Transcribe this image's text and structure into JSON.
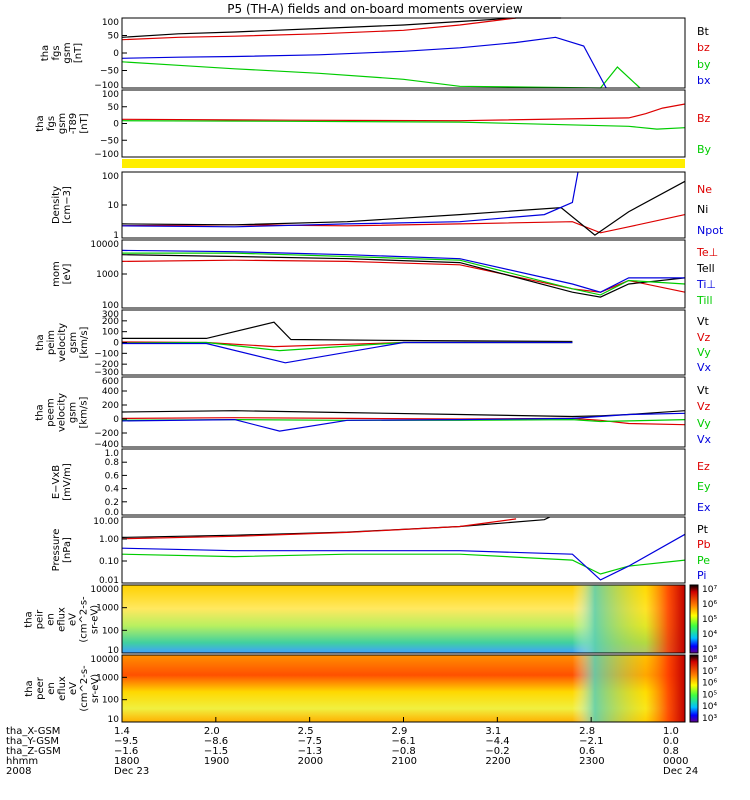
{
  "title": "P5 (TH-A) fields and on-board moments overview",
  "colors": {
    "black": "#000000",
    "red": "#dd0000",
    "green": "#00cc00",
    "blue": "#0000dd",
    "yellow": "#ffee00"
  },
  "chart_data": [
    {
      "type": "line",
      "panel": "fgs",
      "ylabel": [
        "tha",
        "fgs",
        "gsm",
        "[nT]"
      ],
      "yticks": [
        "100",
        "50",
        "0",
        "−50",
        "−100"
      ],
      "ylim": [
        -100,
        100
      ],
      "series": [
        {
          "name": "Bt",
          "color": "black",
          "x": [
            0,
            0.1,
            0.2,
            0.35,
            0.5,
            0.6,
            0.7,
            0.78
          ],
          "y": [
            45,
            55,
            60,
            70,
            80,
            90,
            100,
            110
          ]
        },
        {
          "name": "bz",
          "color": "red",
          "x": [
            0,
            0.1,
            0.2,
            0.35,
            0.5,
            0.6,
            0.7
          ],
          "y": [
            38,
            45,
            48,
            55,
            65,
            80,
            100
          ]
        },
        {
          "name": "by",
          "color": "green",
          "x": [
            0,
            0.1,
            0.2,
            0.35,
            0.5,
            0.6,
            0.85,
            0.88,
            0.92
          ],
          "y": [
            -25,
            -35,
            -45,
            -58,
            -75,
            -95,
            -100,
            -40,
            -100
          ]
        },
        {
          "name": "bx",
          "color": "blue",
          "x": [
            0,
            0.1,
            0.2,
            0.35,
            0.5,
            0.6,
            0.7,
            0.77,
            0.82,
            0.86
          ],
          "y": [
            -15,
            -12,
            -10,
            -5,
            5,
            15,
            30,
            45,
            20,
            -100
          ]
        }
      ]
    },
    {
      "type": "line",
      "panel": "fgs-t89",
      "ylabel": [
        "tha",
        "fgs",
        "gsm",
        "-T89",
        "[nT]"
      ],
      "yticks": [
        "100",
        "50",
        "0",
        "−50",
        "−100"
      ],
      "ylim": [
        -130,
        110
      ],
      "series": [
        {
          "name": "Bz",
          "color": "red",
          "x": [
            0,
            0.3,
            0.6,
            0.9,
            0.93,
            0.96,
            1
          ],
          "y": [
            5,
            2,
            0,
            10,
            25,
            45,
            60
          ]
        },
        {
          "name": "By",
          "color": "green",
          "x": [
            0,
            0.3,
            0.6,
            0.9,
            0.95,
            1
          ],
          "y": [
            0,
            -2,
            -5,
            -20,
            -30,
            -25
          ]
        }
      ]
    },
    {
      "type": "line",
      "panel": "density",
      "yscale": "log",
      "ylabel": [
        "Density",
        "[cm−3]"
      ],
      "yticks": [
        "100",
        "10",
        "1"
      ],
      "ylim": [
        0.3,
        200
      ],
      "series": [
        {
          "name": "Ne",
          "color": "red",
          "x": [
            0,
            0.2,
            0.4,
            0.6,
            0.8,
            0.85,
            0.9,
            1
          ],
          "y": [
            1,
            1.1,
            1.0,
            1.2,
            1.5,
            0.5,
            0.9,
            3
          ]
        },
        {
          "name": "Ni",
          "color": "black",
          "x": [
            0,
            0.2,
            0.4,
            0.6,
            0.78,
            0.84,
            0.9,
            1
          ],
          "y": [
            1.2,
            1.1,
            1.5,
            3,
            6,
            0.4,
            4,
            80
          ]
        },
        {
          "name": "Npot",
          "color": "blue",
          "x": [
            0,
            0.2,
            0.4,
            0.6,
            0.75,
            0.8,
            0.81
          ],
          "y": [
            1.0,
            0.9,
            1.2,
            1.5,
            3,
            10,
            200
          ]
        }
      ]
    },
    {
      "type": "line",
      "panel": "mom",
      "yscale": "log",
      "ylabel": [
        "mom",
        "[eV]"
      ],
      "yticks": [
        "10000",
        "1000",
        "100"
      ],
      "ylim": [
        40,
        12000
      ],
      "series": [
        {
          "name": "Te⊥",
          "color": "red",
          "x": [
            0,
            0.2,
            0.4,
            0.6,
            0.8,
            0.85,
            0.9,
            1
          ],
          "y": [
            2000,
            2200,
            2000,
            1500,
            200,
            150,
            400,
            150
          ]
        },
        {
          "name": "Tell",
          "color": "black",
          "x": [
            0,
            0.2,
            0.4,
            0.6,
            0.8,
            0.85,
            0.9,
            1
          ],
          "y": [
            3500,
            3000,
            2500,
            1800,
            150,
            100,
            300,
            500
          ]
        },
        {
          "name": "Ti⊥",
          "color": "blue",
          "x": [
            0,
            0.2,
            0.4,
            0.6,
            0.8,
            0.85,
            0.9,
            1
          ],
          "y": [
            5000,
            4500,
            3500,
            2500,
            300,
            150,
            500,
            500
          ]
        },
        {
          "name": "Till",
          "color": "green",
          "x": [
            0,
            0.2,
            0.4,
            0.6,
            0.8,
            0.85,
            0.9,
            1
          ],
          "y": [
            4000,
            4000,
            3000,
            2200,
            200,
            120,
            400,
            300
          ]
        }
      ]
    },
    {
      "type": "line",
      "panel": "peim",
      "ylabel": [
        "tha",
        "peim",
        "velocity",
        "gsm",
        "[km/s]"
      ],
      "yticks": [
        "300",
        "200",
        "100",
        "0",
        "−100",
        "−200",
        "−300"
      ],
      "ylim": [
        -320,
        320
      ],
      "series": [
        {
          "name": "Vt",
          "color": "black",
          "x": [
            0,
            0.15,
            0.27,
            0.3,
            0.5,
            0.8
          ],
          "y": [
            40,
            40,
            200,
            30,
            20,
            10
          ]
        },
        {
          "name": "Vz",
          "color": "red",
          "x": [
            0,
            0.15,
            0.27,
            0.5,
            0.8
          ],
          "y": [
            5,
            0,
            -40,
            0,
            0
          ]
        },
        {
          "name": "Vy",
          "color": "green",
          "x": [
            0,
            0.15,
            0.28,
            0.5,
            0.8
          ],
          "y": [
            -5,
            0,
            -80,
            0,
            0
          ]
        },
        {
          "name": "Vx",
          "color": "blue",
          "x": [
            0,
            0.15,
            0.29,
            0.5,
            0.8
          ],
          "y": [
            -10,
            -10,
            -200,
            0,
            0
          ]
        }
      ]
    },
    {
      "type": "line",
      "panel": "peem",
      "ylabel": [
        "tha",
        "peem",
        "velocity",
        "gsm",
        "[km/s]"
      ],
      "yticks": [
        "600",
        "400",
        "200",
        "0",
        "−200",
        "−400"
      ],
      "ylim": [
        -450,
        650
      ],
      "series": [
        {
          "name": "Vt",
          "color": "black",
          "x": [
            0,
            0.2,
            0.4,
            0.6,
            0.8,
            0.85,
            0.9,
            1
          ],
          "y": [
            100,
            120,
            90,
            60,
            30,
            40,
            60,
            120
          ]
        },
        {
          "name": "Vz",
          "color": "red",
          "x": [
            0,
            0.2,
            0.4,
            0.6,
            0.8,
            0.85,
            0.9,
            1
          ],
          "y": [
            0,
            10,
            0,
            -10,
            0,
            -30,
            -80,
            -100
          ]
        },
        {
          "name": "Vy",
          "color": "green",
          "x": [
            0,
            0.2,
            0.4,
            0.6,
            0.8,
            0.85,
            0.9,
            1
          ],
          "y": [
            -30,
            -20,
            -30,
            -30,
            -20,
            -50,
            -40,
            -20
          ]
        },
        {
          "name": "Vx",
          "color": "blue",
          "x": [
            0,
            0.2,
            0.28,
            0.4,
            0.6,
            0.8,
            0.9,
            1
          ],
          "y": [
            -40,
            -20,
            -200,
            -30,
            -20,
            0,
            60,
            80
          ]
        }
      ]
    },
    {
      "type": "line",
      "panel": "efield",
      "ylabel": [
        "E−VxB",
        "[mV/m]"
      ],
      "yticks": [
        "1.0",
        "0.8",
        "0.6",
        "0.4",
        "0.2",
        "0.0"
      ],
      "ylim": [
        0,
        1
      ],
      "series": [
        {
          "name": "Ez",
          "color": "red",
          "x": [],
          "y": []
        },
        {
          "name": "Ey",
          "color": "green",
          "x": [],
          "y": []
        },
        {
          "name": "Ex",
          "color": "blue",
          "x": [],
          "y": []
        }
      ]
    },
    {
      "type": "line",
      "panel": "pressure",
      "yscale": "log",
      "ylabel": [
        "Pressure",
        "[nPa]"
      ],
      "yticks": [
        "10.00",
        "1.00",
        "0.10",
        "0.01"
      ],
      "ylim": [
        0.007,
        15
      ],
      "series": [
        {
          "name": "Pt",
          "color": "black",
          "x": [
            0,
            0.2,
            0.4,
            0.6,
            0.75,
            0.76
          ],
          "y": [
            1.4,
            1.8,
            2.6,
            5,
            11,
            15
          ]
        },
        {
          "name": "Pb",
          "color": "red",
          "x": [
            0,
            0.2,
            0.4,
            0.6,
            0.7
          ],
          "y": [
            1.2,
            1.6,
            2.5,
            5,
            12
          ]
        },
        {
          "name": "Pe",
          "color": "green",
          "x": [
            0,
            0.2,
            0.4,
            0.6,
            0.8,
            0.85,
            0.9,
            1
          ],
          "y": [
            0.2,
            0.15,
            0.2,
            0.2,
            0.1,
            0.02,
            0.05,
            0.1
          ]
        },
        {
          "name": "Pi",
          "color": "blue",
          "x": [
            0,
            0.2,
            0.4,
            0.6,
            0.8,
            0.85,
            0.9,
            1
          ],
          "y": [
            0.4,
            0.3,
            0.3,
            0.3,
            0.2,
            0.01,
            0.05,
            2
          ]
        }
      ]
    },
    {
      "type": "heatmap",
      "panel": "peir",
      "ylabel": [
        "tha",
        "peir",
        "en",
        "eflux",
        "eV",
        "(cm^2-s-",
        "sr-eV)"
      ],
      "yticks": [
        "10000",
        "1000",
        "100",
        "10"
      ],
      "cbar": [
        "10⁷",
        "10⁶",
        "10⁵",
        "10⁴",
        "10³"
      ]
    },
    {
      "type": "heatmap",
      "panel": "peer",
      "ylabel": [
        "tha",
        "peer",
        "en",
        "eflux",
        "eV",
        "(cm^2-s-",
        "sr-eV)"
      ],
      "yticks": [
        "10000",
        "1000",
        "100",
        "10"
      ],
      "cbar": [
        "10⁸",
        "10⁷",
        "10⁶",
        "10⁵",
        "10⁴",
        "10³"
      ]
    }
  ],
  "xaxis": {
    "labels": [
      "tha_X-GSM",
      "tha_Y-GSM",
      "tha_Z-GSM",
      "hhmm",
      "2008"
    ],
    "columns": [
      {
        "v": [
          "1.4",
          "−9.5",
          "−1.6",
          "1800",
          "Dec 23"
        ]
      },
      {
        "v": [
          "2.0",
          "−8.6",
          "−1.5",
          "1900",
          ""
        ]
      },
      {
        "v": [
          "2.5",
          "−7.5",
          "−1.3",
          "2000",
          ""
        ]
      },
      {
        "v": [
          "2.9",
          "−6.1",
          "−0.8",
          "2100",
          ""
        ]
      },
      {
        "v": [
          "3.1",
          "−4.4",
          "−0.2",
          "2200",
          ""
        ]
      },
      {
        "v": [
          "2.8",
          "−2.1",
          "0.6",
          "2300",
          ""
        ]
      },
      {
        "v": [
          "1.0",
          "0.0",
          "0.8",
          "0000",
          "Dec 24"
        ]
      }
    ]
  }
}
